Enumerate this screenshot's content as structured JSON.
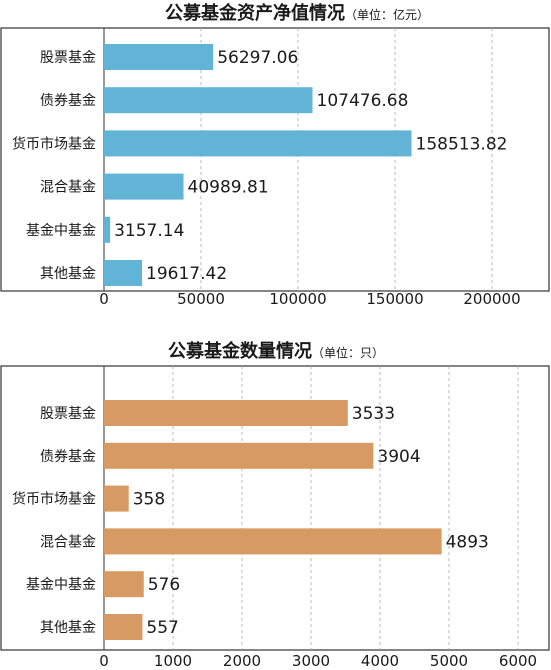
{
  "chart_data": [
    {
      "type": "bar",
      "orientation": "horizontal",
      "title": "公募基金资产净值情况",
      "unit_label": "（单位：亿元）",
      "categories": [
        "股票基金",
        "债券基金",
        "货币市场基金",
        "混合基金",
        "基金中基金",
        "其他基金"
      ],
      "values": [
        56297.06,
        107476.68,
        158513.82,
        40989.81,
        3157.14,
        19617.42
      ],
      "value_labels": [
        "56297.06",
        "107476.68",
        "158513.82",
        "40989.81",
        "3157.14",
        "19617.42"
      ],
      "xlim": [
        0,
        200000
      ],
      "xticks": [
        0,
        50000,
        100000,
        150000,
        200000
      ],
      "grid": true,
      "bar_color": "#62b4d6"
    },
    {
      "type": "bar",
      "orientation": "horizontal",
      "title": "公募基金数量情况",
      "unit_label": "（单位：只）",
      "categories": [
        "股票基金",
        "债券基金",
        "货币市场基金",
        "混合基金",
        "基金中基金",
        "其他基金"
      ],
      "values": [
        3533,
        3904,
        358,
        4893,
        576,
        557
      ],
      "value_labels": [
        "3533",
        "3904",
        "358",
        "4893",
        "576",
        "557"
      ],
      "xlim": [
        0,
        6000
      ],
      "xticks": [
        0,
        1000,
        2000,
        3000,
        4000,
        5000,
        6000
      ],
      "grid": true,
      "bar_color": "#d79a62"
    }
  ]
}
